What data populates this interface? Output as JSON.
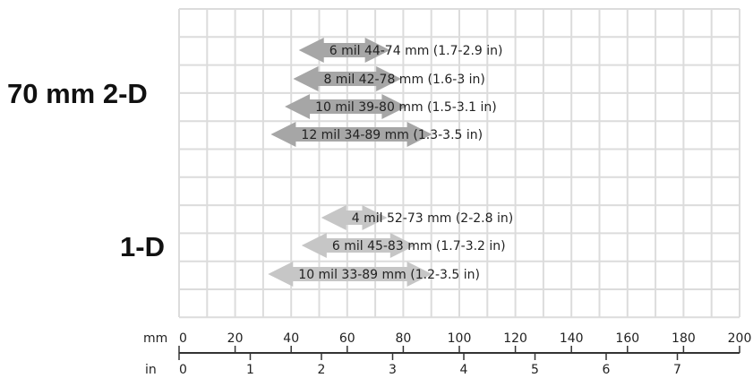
{
  "labels": {
    "group_2d": "70 mm  2-D",
    "group_1d": "1-D"
  },
  "axis": {
    "mm_unit": "mm",
    "in_unit": "in",
    "mm_ticks": [
      "0",
      "20",
      "40",
      "60",
      "80",
      "100",
      "120",
      "140",
      "160",
      "180",
      "200"
    ],
    "in_ticks": [
      "0",
      "1",
      "2",
      "3",
      "4",
      "5",
      "6",
      "7"
    ]
  },
  "colors": {
    "grid": "#dcdcdc",
    "arrow_2d": "#a6a6a6",
    "arrow_1d": "#c6c6c6"
  },
  "chart_data": {
    "type": "range",
    "xlabel": "mm",
    "xlim": [
      0,
      200
    ],
    "secondary_x": {
      "label": "in",
      "ticks": [
        0,
        1,
        2,
        3,
        4,
        5,
        6,
        7
      ]
    },
    "groups": [
      {
        "name": "70 mm  2-D",
        "ranges": [
          {
            "label": "6 mil 44-74 mm  (1.7-2.9 in)",
            "min": 44,
            "max": 74
          },
          {
            "label": "8 mil 42-78 mm  (1.6-3 in)",
            "min": 42,
            "max": 78
          },
          {
            "label": "10 mil 39-80 mm  (1.5-3.1 in)",
            "min": 39,
            "max": 80
          },
          {
            "label": "12 mil 34-89 mm  (1.3-3.5 in)",
            "min": 34,
            "max": 89
          }
        ]
      },
      {
        "name": "1-D",
        "ranges": [
          {
            "label": "4 mil  52-73 mm (2-2.8 in)",
            "min": 52,
            "max": 73
          },
          {
            "label": "6 mil  45-83 mm (1.7-3.2 in)",
            "min": 45,
            "max": 83
          },
          {
            "label": "10 mil  33-89 mm (1.2-3.5 in)",
            "min": 33,
            "max": 89
          }
        ]
      }
    ]
  }
}
